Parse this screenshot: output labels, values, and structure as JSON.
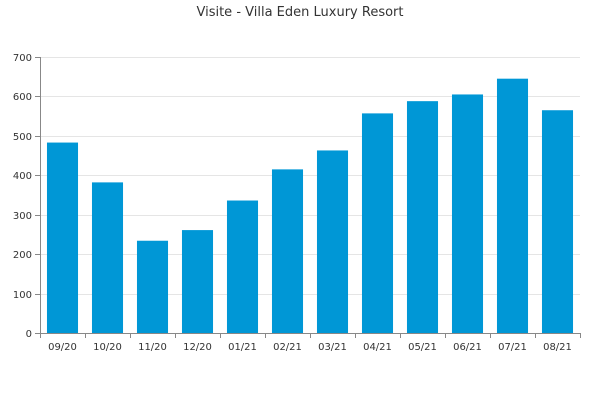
{
  "chart_data": {
    "type": "bar",
    "title": "Visite - Villa Eden Luxury Resort",
    "xlabel": "",
    "ylabel": "",
    "categories": [
      "09/20",
      "10/20",
      "11/20",
      "12/20",
      "01/21",
      "02/21",
      "03/21",
      "04/21",
      "05/21",
      "06/21",
      "07/21",
      "08/21"
    ],
    "values": [
      483,
      382,
      234,
      261,
      336,
      415,
      463,
      557,
      588,
      605,
      645,
      565
    ],
    "ylim": [
      0,
      700
    ],
    "yticks": [
      0,
      100,
      200,
      300,
      400,
      500,
      600,
      700
    ],
    "grid": true,
    "legend": "none",
    "bar_color": "#0097d6",
    "grid_color": "#e5e5e5",
    "axis_color": "#888888",
    "text_color": "#333333"
  }
}
